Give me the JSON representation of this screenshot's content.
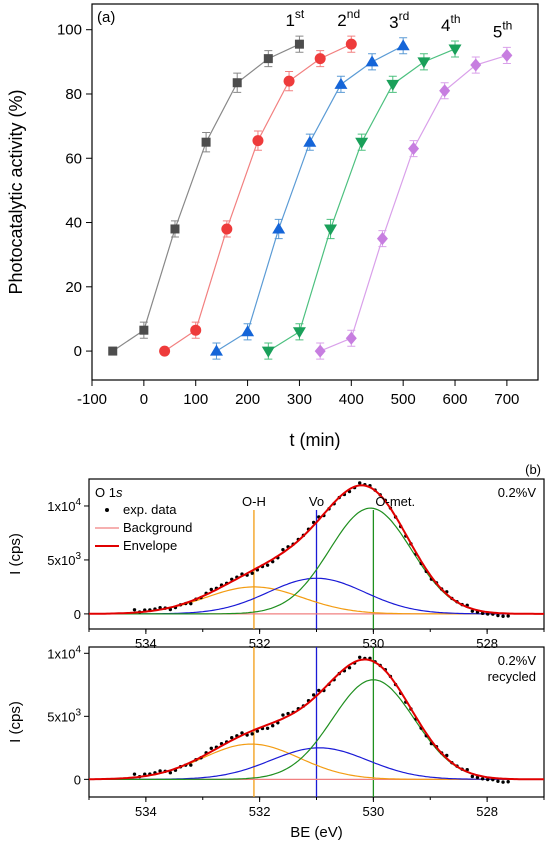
{
  "chart_data": [
    {
      "id": "a",
      "type": "scatter",
      "panel_label": "(a)",
      "xlabel": "t (min)",
      "ylabel": "Photocatalytic activity (%)",
      "xlim": [
        -100,
        760
      ],
      "ylim": [
        -9,
        108
      ],
      "xticks": [
        -100,
        0,
        100,
        200,
        300,
        400,
        500,
        600,
        700
      ],
      "yticks": [
        0,
        20,
        40,
        60,
        80,
        100
      ],
      "series": [
        {
          "label_base": "1",
          "label_sup": "st",
          "color": "#4d4d4d",
          "line_color": "#888888",
          "marker": "square",
          "x": [
            -60,
            0,
            60,
            120,
            180,
            240,
            300
          ],
          "y": [
            0,
            6.5,
            38,
            65,
            83.5,
            91,
            95.5
          ],
          "err": [
            0,
            2.5,
            2.5,
            3,
            3,
            2.5,
            2.5
          ]
        },
        {
          "label_base": "2",
          "label_sup": "nd",
          "color": "#ee3b3b",
          "line_color": "#f28080",
          "marker": "circle",
          "x": [
            40,
            100,
            160,
            220,
            280,
            340,
            400
          ],
          "y": [
            0,
            6.5,
            38,
            65.5,
            84,
            91,
            95.5
          ],
          "err": [
            0,
            2.5,
            2.5,
            3,
            3,
            2.5,
            2.5
          ]
        },
        {
          "label_base": "3",
          "label_sup": "rd",
          "color": "#1565d8",
          "line_color": "#5b9bd5",
          "marker": "triangle-up",
          "x": [
            140,
            200,
            260,
            320,
            380,
            440,
            500
          ],
          "y": [
            0,
            6,
            38,
            65,
            83,
            90,
            95
          ],
          "err": [
            2.5,
            2.5,
            3,
            2.5,
            2.5,
            2.5,
            2.5
          ]
        },
        {
          "label_base": "4",
          "label_sup": "th",
          "color": "#1aa05a",
          "line_color": "#4cc07f",
          "marker": "triangle-down",
          "x": [
            240,
            300,
            360,
            420,
            480,
            540,
            600
          ],
          "y": [
            0,
            6,
            38,
            65,
            83,
            90,
            94
          ],
          "err": [
            2.5,
            2.5,
            3,
            2.5,
            2.5,
            2.5,
            2.5
          ]
        },
        {
          "label_base": "5",
          "label_sup": "th",
          "color": "#c77ee0",
          "line_color": "#d9a0ea",
          "marker": "diamond",
          "x": [
            340,
            400,
            460,
            520,
            580,
            640,
            700
          ],
          "y": [
            0,
            4,
            35,
            63,
            81,
            89,
            92
          ],
          "err": [
            2.5,
            2.5,
            2.5,
            2.5,
            2.5,
            2.5,
            2.5
          ]
        }
      ]
    },
    {
      "id": "b-top",
      "type": "line",
      "panel_label": "(b)",
      "region_label": "O 1s",
      "sample_label": [
        "0.2%V"
      ],
      "ylabel": "I (cps)",
      "xlim": [
        535,
        527
      ],
      "ylim": [
        -1400,
        12500
      ],
      "xticks": [
        534,
        532,
        530,
        528
      ],
      "yticks": [
        {
          "v": 0,
          "t": "0"
        },
        {
          "v": 5000,
          "t": "5x10"
        },
        {
          "v": 10000,
          "t": "1x10"
        }
      ],
      "ytick_sup": "3,4",
      "vlines": [
        {
          "x": 532.1,
          "label": "O-H",
          "color": "#f39c12"
        },
        {
          "x": 531.0,
          "label": "Vo",
          "color": "#1a1ad6"
        },
        {
          "x": 530.0,
          "label": "O-met.",
          "color": "#1f8f1f"
        }
      ],
      "peaks": [
        {
          "center": 532.1,
          "amp": 2500,
          "sigma": 0.85,
          "color": "#f39c12"
        },
        {
          "center": 531.0,
          "amp": 3300,
          "sigma": 0.85,
          "color": "#1a1ad6"
        },
        {
          "center": 530.05,
          "amp": 9800,
          "sigma": 0.72,
          "color": "#1f8f1f"
        }
      ],
      "legend": [
        {
          "type": "dot",
          "label": "exp. data",
          "color": "#000000"
        },
        {
          "type": "line",
          "label": "Background",
          "color": "#f08080"
        },
        {
          "type": "line",
          "label": "Envelope",
          "color": "#e00000"
        }
      ]
    },
    {
      "id": "b-bottom",
      "type": "line",
      "sample_label": [
        "0.2%V",
        "recycled"
      ],
      "ylabel": "I (cps)",
      "xlabel": "BE (eV)",
      "xlim": [
        535,
        527
      ],
      "ylim": [
        -1400,
        10500
      ],
      "xticks": [
        534,
        532,
        530,
        528
      ],
      "yticks": [
        {
          "v": 0,
          "t": "0"
        },
        {
          "v": 5000,
          "t": "5x10"
        },
        {
          "v": 10000,
          "t": "1x10"
        }
      ],
      "ytick_sup": "3,4",
      "vlines": [
        {
          "x": 532.1,
          "color": "#f39c12"
        },
        {
          "x": 531.0,
          "color": "#1a1ad6"
        },
        {
          "x": 530.0,
          "color": "#1f8f1f"
        }
      ],
      "peaks": [
        {
          "center": 532.15,
          "amp": 2800,
          "sigma": 0.85,
          "color": "#f39c12"
        },
        {
          "center": 530.95,
          "amp": 2500,
          "sigma": 0.85,
          "color": "#1a1ad6"
        },
        {
          "center": 530.0,
          "amp": 7900,
          "sigma": 0.72,
          "color": "#1f8f1f"
        }
      ]
    }
  ]
}
